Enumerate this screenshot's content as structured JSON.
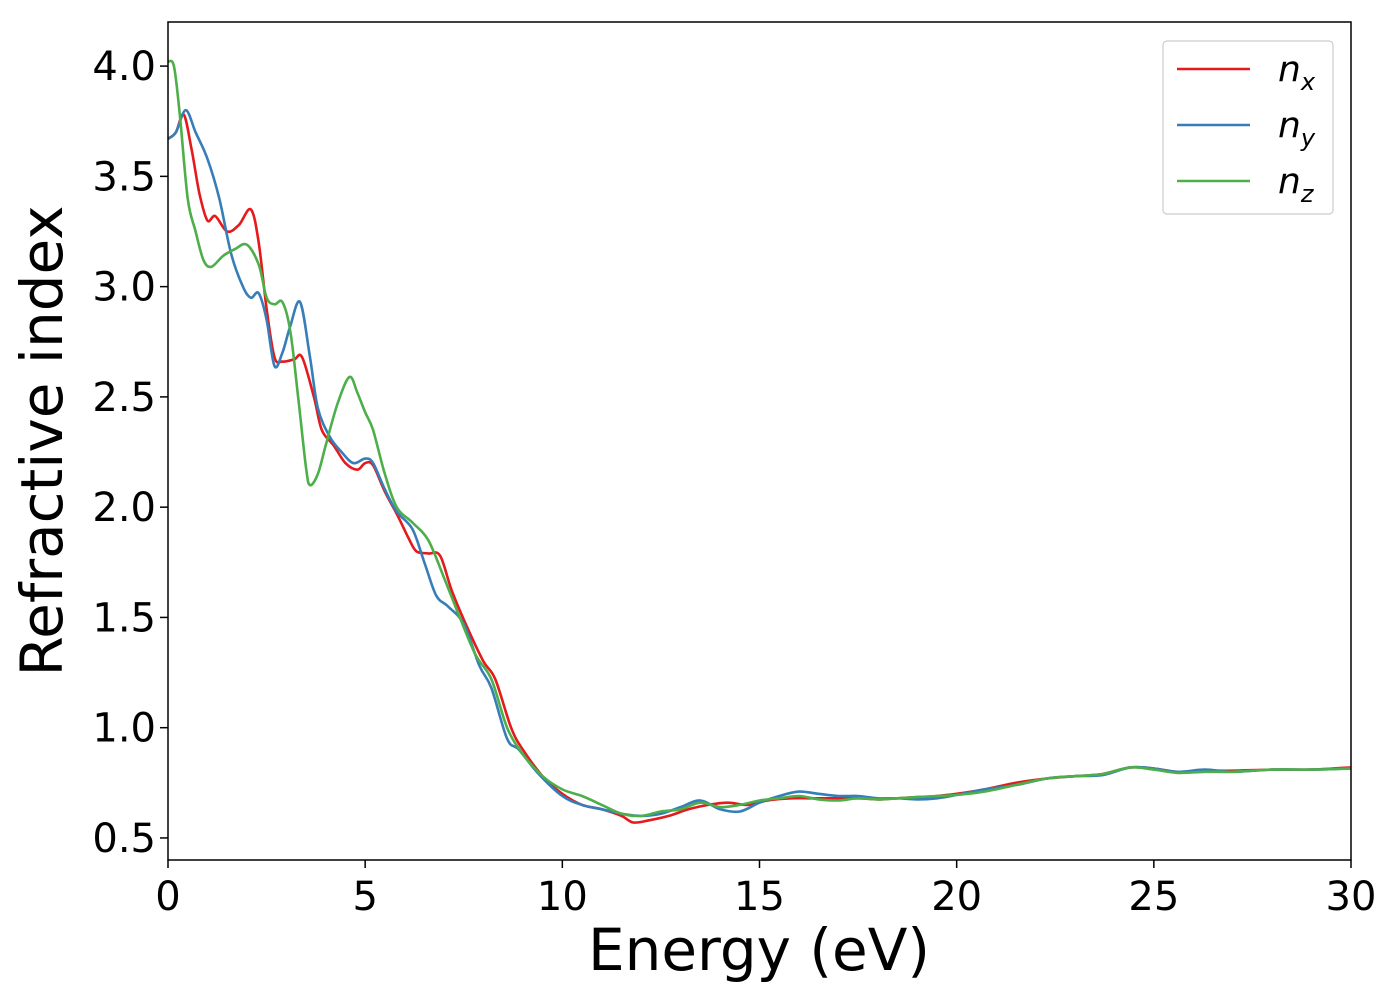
{
  "chart_data": {
    "type": "line",
    "title": "",
    "xlabel": "Energy (eV)",
    "ylabel": "Refractive index",
    "xlim": [
      0,
      30
    ],
    "ylim": [
      0.4,
      4.2
    ],
    "x_ticks": [
      0,
      5,
      10,
      15,
      20,
      25,
      30
    ],
    "y_ticks": [
      0.5,
      1.0,
      1.5,
      2.0,
      2.5,
      3.0,
      3.5,
      4.0
    ],
    "x_tick_labels": [
      "0",
      "5",
      "10",
      "15",
      "20",
      "25",
      "30"
    ],
    "y_tick_labels": [
      "0.5",
      "1.0",
      "1.5",
      "2.0",
      "2.5",
      "3.0",
      "3.5",
      "4.0"
    ],
    "grid": false,
    "legend_position": "top-right",
    "series": [
      {
        "name": "n_x",
        "legend_base": "n",
        "legend_sub": "x",
        "color": "#e41a1c",
        "points": [
          [
            0,
            3.67
          ],
          [
            0.2,
            3.7
          ],
          [
            0.4,
            3.78
          ],
          [
            0.6,
            3.62
          ],
          [
            0.8,
            3.42
          ],
          [
            1.0,
            3.3
          ],
          [
            1.2,
            3.32
          ],
          [
            1.5,
            3.25
          ],
          [
            1.8,
            3.28
          ],
          [
            2.1,
            3.35
          ],
          [
            2.3,
            3.2
          ],
          [
            2.5,
            2.9
          ],
          [
            2.7,
            2.68
          ],
          [
            2.9,
            2.66
          ],
          [
            3.2,
            2.67
          ],
          [
            3.4,
            2.68
          ],
          [
            3.7,
            2.5
          ],
          [
            3.9,
            2.35
          ],
          [
            4.2,
            2.28
          ],
          [
            4.5,
            2.2
          ],
          [
            4.8,
            2.17
          ],
          [
            5.0,
            2.2
          ],
          [
            5.2,
            2.19
          ],
          [
            5.5,
            2.07
          ],
          [
            5.8,
            1.97
          ],
          [
            6.1,
            1.86
          ],
          [
            6.3,
            1.8
          ],
          [
            6.6,
            1.79
          ],
          [
            6.9,
            1.78
          ],
          [
            7.2,
            1.62
          ],
          [
            7.6,
            1.45
          ],
          [
            8.0,
            1.3
          ],
          [
            8.3,
            1.22
          ],
          [
            8.7,
            1.0
          ],
          [
            9.0,
            0.9
          ],
          [
            9.5,
            0.78
          ],
          [
            10.0,
            0.7
          ],
          [
            10.5,
            0.65
          ],
          [
            11.0,
            0.63
          ],
          [
            11.5,
            0.6
          ],
          [
            11.8,
            0.57
          ],
          [
            12.2,
            0.58
          ],
          [
            12.7,
            0.6
          ],
          [
            13.2,
            0.63
          ],
          [
            13.7,
            0.65
          ],
          [
            14.2,
            0.66
          ],
          [
            14.7,
            0.65
          ],
          [
            15.2,
            0.67
          ],
          [
            15.8,
            0.68
          ],
          [
            16.3,
            0.68
          ],
          [
            16.8,
            0.68
          ],
          [
            17.5,
            0.68
          ],
          [
            18.0,
            0.675
          ],
          [
            18.5,
            0.68
          ],
          [
            19.0,
            0.685
          ],
          [
            19.5,
            0.69
          ],
          [
            20.0,
            0.7
          ],
          [
            20.7,
            0.72
          ],
          [
            21.5,
            0.75
          ],
          [
            22.3,
            0.77
          ],
          [
            23.0,
            0.78
          ],
          [
            23.7,
            0.79
          ],
          [
            24.4,
            0.82
          ],
          [
            25.0,
            0.815
          ],
          [
            25.6,
            0.8
          ],
          [
            26.3,
            0.805
          ],
          [
            27.0,
            0.805
          ],
          [
            28.0,
            0.81
          ],
          [
            29.0,
            0.81
          ],
          [
            30.0,
            0.82
          ]
        ]
      },
      {
        "name": "n_y",
        "legend_base": "n",
        "legend_sub": "y",
        "color": "#377eb8",
        "points": [
          [
            0,
            3.67
          ],
          [
            0.2,
            3.7
          ],
          [
            0.45,
            3.8
          ],
          [
            0.7,
            3.7
          ],
          [
            1.0,
            3.58
          ],
          [
            1.3,
            3.4
          ],
          [
            1.6,
            3.15
          ],
          [
            1.9,
            3.0
          ],
          [
            2.1,
            2.95
          ],
          [
            2.3,
            2.97
          ],
          [
            2.5,
            2.85
          ],
          [
            2.7,
            2.64
          ],
          [
            2.9,
            2.7
          ],
          [
            3.1,
            2.82
          ],
          [
            3.35,
            2.93
          ],
          [
            3.6,
            2.68
          ],
          [
            3.8,
            2.45
          ],
          [
            4.1,
            2.32
          ],
          [
            4.4,
            2.25
          ],
          [
            4.7,
            2.2
          ],
          [
            5.0,
            2.22
          ],
          [
            5.2,
            2.2
          ],
          [
            5.5,
            2.08
          ],
          [
            5.8,
            1.98
          ],
          [
            6.2,
            1.9
          ],
          [
            6.5,
            1.75
          ],
          [
            6.8,
            1.6
          ],
          [
            7.1,
            1.55
          ],
          [
            7.5,
            1.47
          ],
          [
            7.9,
            1.28
          ],
          [
            8.2,
            1.18
          ],
          [
            8.6,
            0.95
          ],
          [
            8.9,
            0.9
          ],
          [
            9.4,
            0.79
          ],
          [
            10.0,
            0.69
          ],
          [
            10.5,
            0.65
          ],
          [
            11.0,
            0.63
          ],
          [
            11.5,
            0.61
          ],
          [
            12.0,
            0.6
          ],
          [
            12.5,
            0.61
          ],
          [
            13.0,
            0.64
          ],
          [
            13.5,
            0.67
          ],
          [
            14.0,
            0.63
          ],
          [
            14.5,
            0.62
          ],
          [
            15.0,
            0.66
          ],
          [
            15.5,
            0.69
          ],
          [
            16.0,
            0.71
          ],
          [
            16.5,
            0.7
          ],
          [
            17.0,
            0.69
          ],
          [
            17.5,
            0.69
          ],
          [
            18.0,
            0.68
          ],
          [
            18.5,
            0.68
          ],
          [
            19.0,
            0.675
          ],
          [
            19.5,
            0.68
          ],
          [
            20.0,
            0.695
          ],
          [
            20.7,
            0.72
          ],
          [
            21.5,
            0.74
          ],
          [
            22.3,
            0.77
          ],
          [
            23.0,
            0.78
          ],
          [
            23.7,
            0.785
          ],
          [
            24.4,
            0.82
          ],
          [
            25.0,
            0.815
          ],
          [
            25.6,
            0.8
          ],
          [
            26.3,
            0.81
          ],
          [
            27.0,
            0.8
          ],
          [
            28.0,
            0.81
          ],
          [
            29.0,
            0.81
          ],
          [
            30.0,
            0.815
          ]
        ]
      },
      {
        "name": "n_z",
        "legend_base": "n",
        "legend_sub": "z",
        "color": "#4daf4a",
        "points": [
          [
            0,
            4.02
          ],
          [
            0.15,
            4.0
          ],
          [
            0.3,
            3.78
          ],
          [
            0.5,
            3.4
          ],
          [
            0.7,
            3.25
          ],
          [
            0.9,
            3.12
          ],
          [
            1.1,
            3.09
          ],
          [
            1.4,
            3.14
          ],
          [
            1.7,
            3.17
          ],
          [
            2.0,
            3.19
          ],
          [
            2.3,
            3.1
          ],
          [
            2.5,
            2.95
          ],
          [
            2.7,
            2.92
          ],
          [
            2.9,
            2.93
          ],
          [
            3.1,
            2.8
          ],
          [
            3.3,
            2.5
          ],
          [
            3.5,
            2.18
          ],
          [
            3.6,
            2.1
          ],
          [
            3.8,
            2.15
          ],
          [
            4.0,
            2.28
          ],
          [
            4.3,
            2.47
          ],
          [
            4.6,
            2.59
          ],
          [
            4.8,
            2.52
          ],
          [
            5.0,
            2.43
          ],
          [
            5.2,
            2.35
          ],
          [
            5.5,
            2.15
          ],
          [
            5.8,
            2.0
          ],
          [
            6.2,
            1.93
          ],
          [
            6.6,
            1.85
          ],
          [
            7.0,
            1.68
          ],
          [
            7.4,
            1.5
          ],
          [
            7.8,
            1.33
          ],
          [
            8.2,
            1.22
          ],
          [
            8.6,
            1.0
          ],
          [
            9.0,
            0.88
          ],
          [
            9.5,
            0.78
          ],
          [
            10.0,
            0.72
          ],
          [
            10.5,
            0.69
          ],
          [
            11.0,
            0.65
          ],
          [
            11.5,
            0.61
          ],
          [
            12.0,
            0.6
          ],
          [
            12.5,
            0.62
          ],
          [
            13.0,
            0.63
          ],
          [
            13.5,
            0.66
          ],
          [
            14.0,
            0.64
          ],
          [
            14.5,
            0.65
          ],
          [
            15.0,
            0.67
          ],
          [
            15.5,
            0.68
          ],
          [
            16.0,
            0.69
          ],
          [
            16.5,
            0.675
          ],
          [
            17.0,
            0.67
          ],
          [
            17.5,
            0.68
          ],
          [
            18.0,
            0.675
          ],
          [
            18.5,
            0.68
          ],
          [
            19.0,
            0.685
          ],
          [
            19.5,
            0.69
          ],
          [
            20.0,
            0.695
          ],
          [
            20.7,
            0.71
          ],
          [
            21.5,
            0.74
          ],
          [
            22.3,
            0.77
          ],
          [
            23.0,
            0.78
          ],
          [
            23.7,
            0.79
          ],
          [
            24.4,
            0.82
          ],
          [
            25.0,
            0.81
          ],
          [
            25.6,
            0.795
          ],
          [
            26.3,
            0.8
          ],
          [
            27.0,
            0.8
          ],
          [
            28.0,
            0.81
          ],
          [
            29.0,
            0.81
          ],
          [
            30.0,
            0.815
          ]
        ]
      }
    ]
  }
}
